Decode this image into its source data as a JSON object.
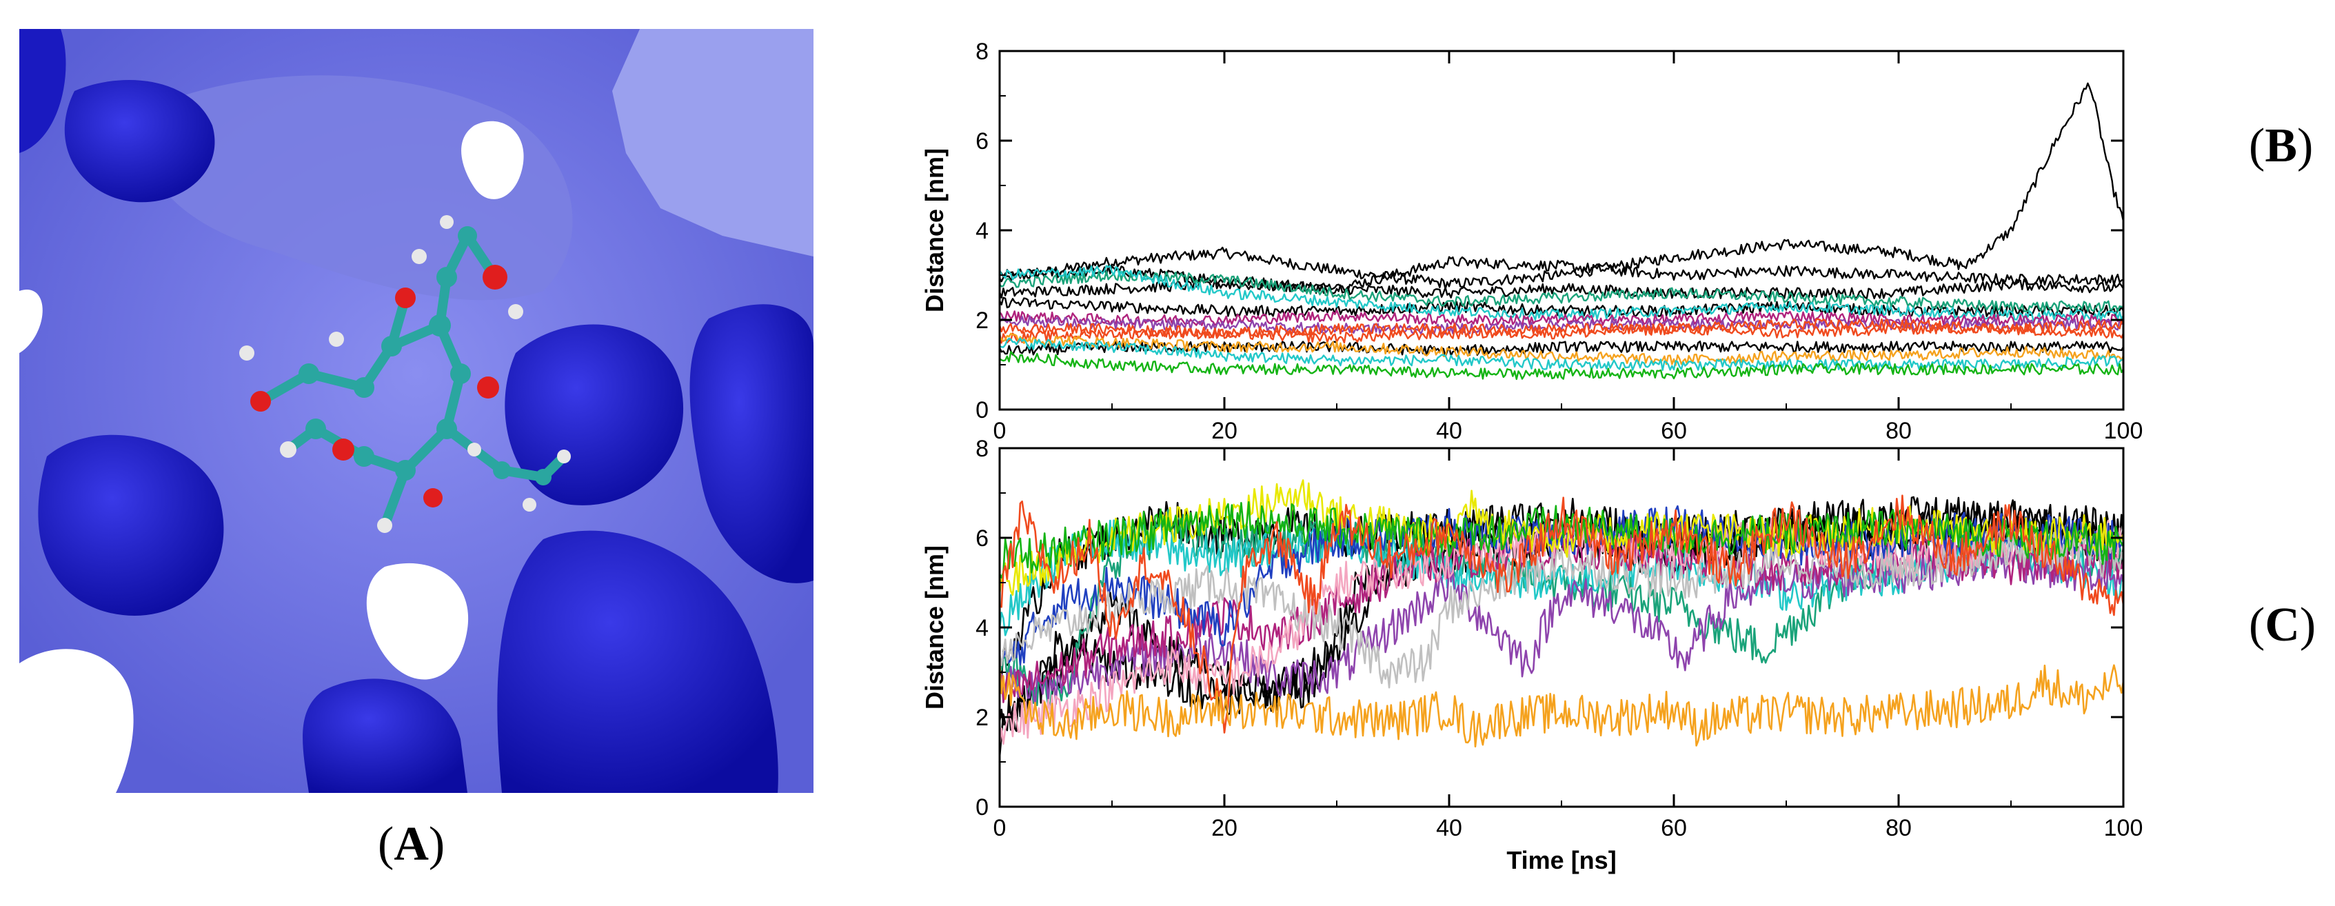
{
  "panel_labels": {
    "A": "A",
    "B": "B",
    "C": "C"
  },
  "colors": {
    "surface_dark": "#1414b4",
    "surface_mid": "#3c3cd2",
    "surface_light": "#7a7ee6",
    "ligand_carbon": "#2aa6a0",
    "ligand_oxygen": "#e01e1e",
    "ligand_hydrogen": "#e8e8e8",
    "series_palette": [
      "#000000",
      "#1aa37a",
      "#22c8c8",
      "#f04a1e",
      "#f5a21e",
      "#8e44ad",
      "#b0237d",
      "#f4a6c0",
      "#14b414",
      "#2040c0",
      "#e8e800",
      "#c0c0c0"
    ]
  },
  "chart_data": [
    {
      "type": "line",
      "panel": "B",
      "xlabel": "",
      "ylabel": "Distance [nm]",
      "xlim": [
        0,
        100
      ],
      "ylim": [
        0,
        8
      ],
      "xticks": [
        0,
        20,
        40,
        60,
        80,
        100
      ],
      "yticks": [
        0,
        2,
        4,
        6,
        8
      ],
      "grid": false,
      "series": [
        {
          "color": "#000000",
          "x": [
            0,
            10,
            20,
            30,
            40,
            50,
            60,
            70,
            80,
            86,
            90,
            94,
            97,
            99,
            100
          ],
          "y": [
            2.9,
            3.3,
            3.5,
            3.1,
            2.8,
            3.0,
            3.4,
            3.7,
            3.5,
            3.2,
            4.0,
            6.0,
            7.3,
            5.0,
            4.2
          ]
        },
        {
          "color": "#000000",
          "x": [
            0,
            10,
            20,
            30,
            40,
            50,
            60,
            70,
            80,
            90,
            100
          ],
          "y": [
            3.0,
            3.1,
            2.9,
            2.7,
            3.3,
            3.2,
            3.0,
            3.1,
            3.0,
            2.9,
            2.9
          ]
        },
        {
          "color": "#000000",
          "x": [
            0,
            10,
            20,
            30,
            40,
            50,
            60,
            70,
            80,
            90,
            100
          ],
          "y": [
            2.6,
            2.7,
            2.8,
            2.7,
            2.6,
            2.7,
            2.6,
            2.6,
            2.6,
            2.8,
            2.7
          ]
        },
        {
          "color": "#000000",
          "x": [
            0,
            10,
            20,
            30,
            40,
            50,
            60,
            70,
            80,
            90,
            100
          ],
          "y": [
            2.4,
            2.3,
            2.2,
            2.2,
            2.3,
            2.2,
            2.2,
            2.3,
            2.2,
            2.2,
            2.2
          ]
        },
        {
          "color": "#000000",
          "x": [
            0,
            10,
            20,
            30,
            40,
            50,
            60,
            70,
            80,
            90,
            100
          ],
          "y": [
            1.3,
            1.4,
            1.4,
            1.4,
            1.3,
            1.4,
            1.4,
            1.4,
            1.4,
            1.4,
            1.4
          ]
        },
        {
          "color": "#1aa37a",
          "x": [
            0,
            10,
            20,
            30,
            40,
            50,
            60,
            70,
            80,
            90,
            100
          ],
          "y": [
            2.8,
            3.0,
            2.9,
            2.6,
            2.4,
            2.5,
            2.6,
            2.5,
            2.4,
            2.3,
            2.3
          ]
        },
        {
          "color": "#22c8c8",
          "x": [
            0,
            10,
            20,
            30,
            40,
            50,
            60,
            70,
            80,
            90,
            100
          ],
          "y": [
            3.0,
            3.1,
            2.6,
            2.4,
            2.2,
            2.1,
            2.2,
            2.3,
            2.2,
            2.1,
            2.1
          ]
        },
        {
          "color": "#b0237d",
          "x": [
            0,
            10,
            20,
            30,
            40,
            50,
            60,
            70,
            80,
            90,
            100
          ],
          "y": [
            2.1,
            2.0,
            2.0,
            2.1,
            2.0,
            2.0,
            2.0,
            2.1,
            2.0,
            2.0,
            2.0
          ]
        },
        {
          "color": "#8e44ad",
          "x": [
            0,
            10,
            20,
            30,
            40,
            50,
            60,
            70,
            80,
            90,
            100
          ],
          "y": [
            2.0,
            1.9,
            1.9,
            1.8,
            1.8,
            1.9,
            1.9,
            1.9,
            1.9,
            1.9,
            1.9
          ]
        },
        {
          "color": "#f04a1e",
          "x": [
            0,
            10,
            20,
            30,
            40,
            50,
            60,
            70,
            80,
            90,
            100
          ],
          "y": [
            1.8,
            1.8,
            1.7,
            1.8,
            1.8,
            1.8,
            1.8,
            1.9,
            1.9,
            1.8,
            1.9
          ]
        },
        {
          "color": "#f04a1e",
          "x": [
            0,
            10,
            20,
            30,
            40,
            50,
            60,
            70,
            80,
            90,
            100
          ],
          "y": [
            1.6,
            1.7,
            1.7,
            1.6,
            1.7,
            1.7,
            1.8,
            1.7,
            1.8,
            1.8,
            1.7
          ]
        },
        {
          "color": "#f5a21e",
          "x": [
            0,
            10,
            20,
            30,
            40,
            50,
            60,
            70,
            80,
            90,
            100
          ],
          "y": [
            1.6,
            1.5,
            1.4,
            1.4,
            1.3,
            1.2,
            1.1,
            1.2,
            1.2,
            1.3,
            1.2
          ]
        },
        {
          "color": "#22c8c8",
          "x": [
            0,
            10,
            20,
            30,
            40,
            50,
            60,
            70,
            80,
            90,
            100
          ],
          "y": [
            1.5,
            1.4,
            1.2,
            1.1,
            1.1,
            1.0,
            1.0,
            1.0,
            1.0,
            1.0,
            1.1
          ]
        },
        {
          "color": "#14b414",
          "x": [
            0,
            10,
            20,
            30,
            40,
            50,
            60,
            70,
            80,
            90,
            100
          ],
          "y": [
            1.2,
            1.0,
            0.9,
            0.9,
            0.8,
            0.8,
            0.8,
            0.9,
            0.9,
            0.9,
            0.9
          ]
        }
      ]
    },
    {
      "type": "line",
      "panel": "C",
      "xlabel": "Time [ns]",
      "ylabel": "Distance [nm]",
      "xlim": [
        0,
        100
      ],
      "ylim": [
        0,
        8
      ],
      "xticks": [
        0,
        20,
        40,
        60,
        80,
        100
      ],
      "yticks": [
        0,
        2,
        4,
        6,
        8
      ],
      "grid": false,
      "series": [
        {
          "color": "#000000",
          "x": [
            0,
            5,
            10,
            15,
            20,
            25,
            30,
            40,
            50,
            60,
            70,
            80,
            90,
            100
          ],
          "y": [
            3.0,
            5.5,
            6.0,
            6.5,
            6.0,
            6.3,
            6.0,
            6.2,
            6.5,
            6.0,
            6.3,
            6.5,
            6.4,
            6.2
          ]
        },
        {
          "color": "#000000",
          "x": [
            0,
            5,
            10,
            15,
            20,
            25,
            30,
            35,
            40,
            50,
            60,
            70,
            80,
            90,
            100
          ],
          "y": [
            1.5,
            3.5,
            3.2,
            2.8,
            2.5,
            2.6,
            3.5,
            5.5,
            6.0,
            6.2,
            5.8,
            6.1,
            6.3,
            6.0,
            6.1
          ]
        },
        {
          "color": "#000000",
          "x": [
            0,
            5,
            10,
            15,
            20,
            25,
            28,
            32,
            40,
            50,
            60,
            70,
            80,
            90,
            100
          ],
          "y": [
            2.0,
            3.0,
            4.5,
            3.5,
            2.8,
            2.5,
            2.7,
            5.0,
            5.5,
            6.0,
            5.5,
            6.2,
            6.0,
            6.4,
            5.8
          ]
        },
        {
          "color": "#1aa37a",
          "x": [
            0,
            3,
            6,
            10,
            15,
            20,
            30,
            40,
            50,
            60,
            68,
            75,
            80,
            90,
            100
          ],
          "y": [
            3.5,
            2.5,
            2.8,
            5.5,
            6.2,
            5.8,
            6.0,
            5.5,
            5.0,
            4.5,
            3.5,
            5.0,
            5.5,
            5.8,
            5.5
          ]
        },
        {
          "color": "#22c8c8",
          "x": [
            0,
            5,
            10,
            20,
            30,
            40,
            50,
            60,
            70,
            80,
            90,
            100
          ],
          "y": [
            4.0,
            5.5,
            6.0,
            5.5,
            6.0,
            5.2,
            5.0,
            5.5,
            4.8,
            5.2,
            5.8,
            5.0
          ]
        },
        {
          "color": "#8e44ad",
          "x": [
            0,
            5,
            10,
            20,
            25,
            30,
            35,
            40,
            47,
            50,
            55,
            61,
            65,
            70,
            80,
            90,
            100
          ],
          "y": [
            2.8,
            2.6,
            3.2,
            3.6,
            2.8,
            3.0,
            4.0,
            5.0,
            3.2,
            4.8,
            4.5,
            3.3,
            4.7,
            5.0,
            5.2,
            5.5,
            5.0
          ]
        },
        {
          "color": "#b0237d",
          "x": [
            0,
            5,
            10,
            15,
            20,
            25,
            30,
            35,
            40,
            50,
            60,
            70,
            80,
            90,
            100
          ],
          "y": [
            2.5,
            3.0,
            3.6,
            3.8,
            4.3,
            3.8,
            4.5,
            5.2,
            5.5,
            5.8,
            5.5,
            5.2,
            5.6,
            5.4,
            5.5
          ]
        },
        {
          "color": "#f4a6c0",
          "x": [
            0,
            3,
            6,
            10,
            15,
            20,
            25,
            30,
            40,
            50,
            60,
            70,
            80,
            90,
            100
          ],
          "y": [
            1.8,
            2.0,
            2.2,
            2.6,
            3.2,
            2.8,
            3.5,
            5.0,
            5.5,
            6.0,
            5.8,
            6.0,
            5.5,
            5.8,
            6.0
          ]
        },
        {
          "color": "#2040c0",
          "x": [
            0,
            5,
            10,
            15,
            20,
            25,
            30,
            40,
            50,
            60,
            70,
            80,
            90,
            100
          ],
          "y": [
            3.0,
            4.5,
            5.0,
            4.5,
            4.0,
            5.5,
            6.0,
            6.2,
            6.0,
            6.3,
            5.8,
            6.0,
            6.2,
            5.9
          ]
        },
        {
          "color": "#c0c0c0",
          "x": [
            0,
            10,
            20,
            30,
            35,
            38,
            40,
            50,
            60,
            70,
            80,
            90,
            100
          ],
          "y": [
            3.5,
            4.5,
            5.0,
            4.0,
            3.0,
            3.2,
            4.5,
            5.5,
            5.0,
            5.5,
            5.2,
            5.8,
            5.5
          ]
        },
        {
          "color": "#e8e800",
          "x": [
            0,
            10,
            20,
            27,
            30,
            40,
            42,
            45,
            50,
            60,
            70,
            80,
            90,
            100
          ],
          "y": [
            5.0,
            6.0,
            6.5,
            7.0,
            6.5,
            6.0,
            6.8,
            6.2,
            6.0,
            6.2,
            6.0,
            6.3,
            6.0,
            6.1
          ]
        },
        {
          "color": "#14b414",
          "x": [
            0,
            10,
            20,
            30,
            40,
            50,
            60,
            70,
            80,
            90,
            100
          ],
          "y": [
            5.5,
            6.0,
            6.5,
            6.2,
            6.0,
            6.3,
            6.0,
            6.1,
            6.2,
            6.0,
            5.8
          ]
        },
        {
          "color": "#f04a1e",
          "x": [
            0,
            2,
            5,
            8,
            10,
            13,
            16,
            20,
            22,
            25,
            28,
            30,
            35,
            40,
            45,
            50,
            55,
            60,
            65,
            70,
            75,
            80,
            85,
            90,
            95,
            100
          ],
          "y": [
            4.5,
            6.5,
            5.0,
            6.0,
            4.0,
            5.5,
            4.5,
            2.0,
            5.5,
            6.0,
            4.5,
            6.5,
            5.5,
            6.2,
            5.0,
            6.5,
            5.5,
            6.3,
            5.2,
            6.5,
            5.4,
            6.6,
            5.5,
            6.4,
            5.2,
            4.5
          ]
        },
        {
          "color": "#f5a21e",
          "x": [
            0,
            3,
            6,
            10,
            15,
            20,
            25,
            30,
            35,
            40,
            42,
            45,
            50,
            55,
            60,
            62,
            65,
            70,
            75,
            80,
            85,
            90,
            93,
            96,
            100
          ],
          "y": [
            3.0,
            2.0,
            1.8,
            2.2,
            2.0,
            2.2,
            2.1,
            2.0,
            1.9,
            2.2,
            1.7,
            2.0,
            2.1,
            2.0,
            2.2,
            1.8,
            2.0,
            2.1,
            2.0,
            2.1,
            2.2,
            2.3,
            2.8,
            2.4,
            2.8
          ]
        }
      ]
    }
  ]
}
